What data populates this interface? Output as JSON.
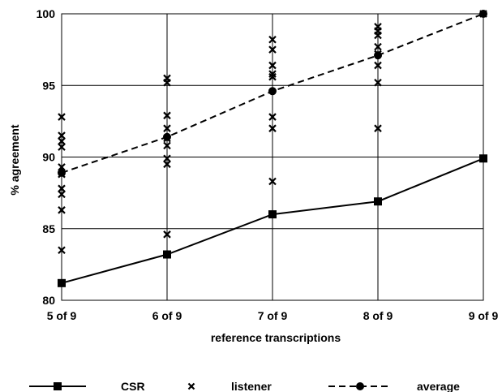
{
  "chart_data": {
    "type": "line",
    "categories": [
      "5 of 9",
      "6 of 9",
      "7 of 9",
      "8 of 9",
      "9 of 9"
    ],
    "xlabel": "reference transcriptions",
    "ylabel": "% agreement",
    "ylim": [
      80,
      100
    ],
    "yticks": [
      80,
      85,
      90,
      95,
      100
    ],
    "grid": true,
    "legend_position": "bottom",
    "series": [
      {
        "name": "CSR",
        "style": "solid-square",
        "values": [
          81.2,
          83.2,
          86.0,
          86.9,
          89.9
        ]
      },
      {
        "name": "average",
        "style": "dashed-circle",
        "values": [
          88.9,
          91.4,
          94.6,
          97.1,
          100.0
        ]
      }
    ],
    "scatter": {
      "name": "listener",
      "style": "x-marker",
      "points": [
        [
          0,
          92.8
        ],
        [
          0,
          91.5
        ],
        [
          0,
          91.1
        ],
        [
          0,
          90.7
        ],
        [
          0,
          89.3
        ],
        [
          0,
          88.8
        ],
        [
          0,
          87.8
        ],
        [
          0,
          87.4
        ],
        [
          0,
          86.3
        ],
        [
          0,
          83.5
        ],
        [
          1,
          95.5
        ],
        [
          1,
          95.2
        ],
        [
          1,
          92.9
        ],
        [
          1,
          92.0
        ],
        [
          1,
          91.3
        ],
        [
          1,
          90.8
        ],
        [
          1,
          89.9
        ],
        [
          1,
          89.5
        ],
        [
          1,
          84.6
        ],
        [
          2,
          98.2
        ],
        [
          2,
          97.5
        ],
        [
          2,
          96.4
        ],
        [
          2,
          95.8
        ],
        [
          2,
          95.6
        ],
        [
          2,
          92.8
        ],
        [
          2,
          92.0
        ],
        [
          2,
          88.3
        ],
        [
          3,
          99.1
        ],
        [
          3,
          98.8
        ],
        [
          3,
          98.5
        ],
        [
          3,
          97.7
        ],
        [
          3,
          97.2
        ],
        [
          3,
          96.4
        ],
        [
          3,
          95.2
        ],
        [
          3,
          92.0
        ],
        [
          4,
          100.0
        ]
      ]
    }
  }
}
